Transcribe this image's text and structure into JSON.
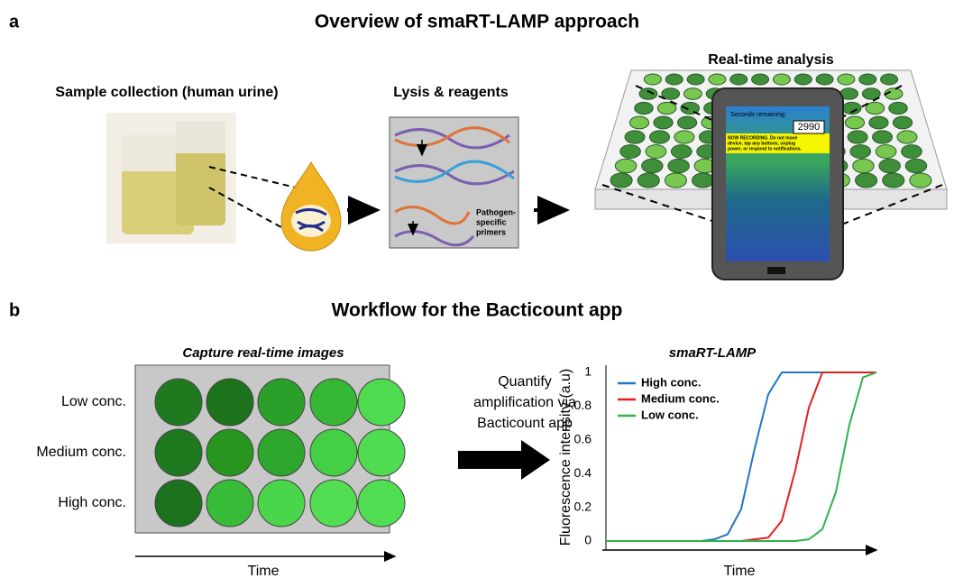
{
  "panel_a": {
    "label": "a",
    "title": "Overview of smaRT-LAMP approach",
    "step1": "Sample collection (human urine)",
    "step2": "Lysis & reagents",
    "step3": "Real-time analysis",
    "primers": [
      "Pathogen-",
      "specific",
      "primers"
    ],
    "phone": {
      "countdown_label": "Seconds remaining:",
      "countdown": "2990",
      "warning": [
        "NOW RECORDING. Do not move",
        "device, tap any buttons, unplug",
        "power, or respond to notifications."
      ]
    }
  },
  "panel_b": {
    "label": "b",
    "title": "Workflow for the Bacticount app",
    "capture_title": "Capture real-time images",
    "rows": [
      "Low conc.",
      "Medium conc.",
      "High conc."
    ],
    "time_label": "Time",
    "quantify": [
      "Quantify",
      "amplification via",
      "Bacticount app"
    ]
  },
  "chart_data": {
    "type": "line",
    "title": "smaRT-LAMP",
    "y_label": "Fluorescence intensity (a.u)",
    "x_label": "Time",
    "categories": [
      null,
      null,
      null,
      null,
      null,
      null,
      null,
      null,
      null,
      null,
      null,
      null,
      null,
      null,
      null,
      null,
      null,
      null,
      null,
      null,
      null
    ],
    "ylim": [
      0,
      1
    ],
    "yticks": [
      0,
      0.2,
      0.4,
      0.6,
      0.8,
      1
    ],
    "legend": "upper left",
    "series": [
      {
        "name": "High conc.",
        "color": "#1f77c4",
        "values": [
          0,
          0,
          0,
          0,
          0,
          0,
          0,
          0,
          0.01,
          0.04,
          0.19,
          0.55,
          0.87,
          1,
          1,
          1,
          1,
          1,
          1,
          1,
          1
        ]
      },
      {
        "name": "Medium conc.",
        "color": "#e0201f",
        "values": [
          0,
          0,
          0,
          0,
          0,
          0,
          0,
          0,
          0,
          0,
          0,
          0.01,
          0.02,
          0.12,
          0.42,
          0.79,
          1,
          1,
          1,
          1,
          1
        ]
      },
      {
        "name": "Low conc.",
        "color": "#2db34a",
        "values": [
          0,
          0,
          0,
          0,
          0,
          0,
          0,
          0,
          0,
          0,
          0,
          0,
          0,
          0,
          0,
          0.01,
          0.07,
          0.29,
          0.69,
          0.97,
          1
        ]
      }
    ]
  }
}
